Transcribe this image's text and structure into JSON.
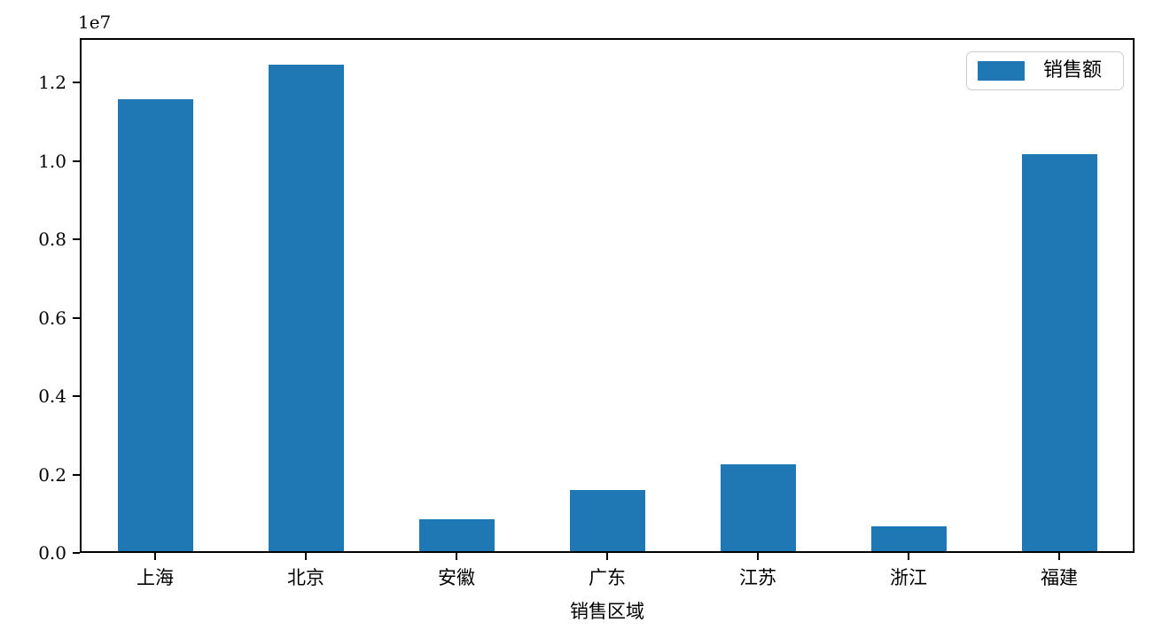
{
  "chart_data": {
    "type": "bar",
    "categories": [
      "上海",
      "北京",
      "安徽",
      "广东",
      "江苏",
      "浙江",
      "福建"
    ],
    "series": [
      {
        "name": "销售额",
        "values": [
          11590000,
          12470000,
          870000,
          1600000,
          2270000,
          670000,
          10180000
        ]
      }
    ],
    "title": "",
    "xlabel": "销售区域",
    "ylabel": "",
    "ylim": [
      0,
      13140000
    ],
    "yticks": [
      0,
      2000000,
      4000000,
      6000000,
      8000000,
      10000000,
      12000000
    ],
    "ytick_labels": [
      "0.0",
      "0.2",
      "0.4",
      "0.6",
      "0.8",
      "1.0",
      "1.2"
    ],
    "offset_text": "1e7",
    "bar_color": "#1f77b4",
    "bar_width_fraction": 0.5,
    "grid": false,
    "legend": {
      "position": "upper right",
      "entries": [
        "销售额"
      ]
    }
  }
}
